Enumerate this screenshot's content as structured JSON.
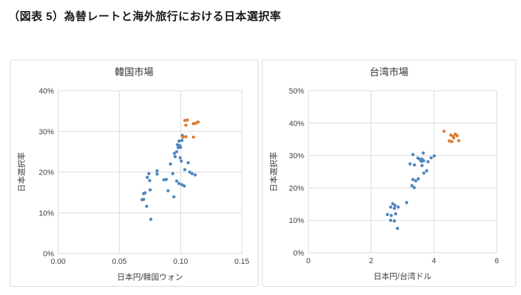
{
  "page_title": "（図表 5）為替レートと海外旅行における日本選択率",
  "colors": {
    "series_blue": "#4e86be",
    "series_orange": "#dd7a33",
    "grid": "#d9d9d9",
    "axis_text": "#404040"
  },
  "chart_data": [
    {
      "type": "scatter",
      "title": "韓国市場",
      "xlabel": "日本円/韓国ウォン",
      "ylabel": "日本選択率",
      "xlim": [
        0,
        0.15
      ],
      "ylim": [
        0,
        40
      ],
      "xticks": [
        0,
        0.05,
        0.1,
        0.15
      ],
      "xtick_labels": [
        "0.00",
        "0.05",
        "0.10",
        "0.15"
      ],
      "yticks": [
        0,
        10,
        20,
        30,
        40
      ],
      "ytick_labels": [
        "0%",
        "10%",
        "20%",
        "30%",
        "40%"
      ],
      "grid": true,
      "legend": "none",
      "series": [
        {
          "name": "series-1-blue",
          "color": "#4e86be",
          "points": [
            [
              0.1015,
              29.0
            ],
            [
              0.0987,
              27.6
            ],
            [
              0.1011,
              27.8
            ],
            [
              0.0974,
              26.7
            ],
            [
              0.0992,
              26.5
            ],
            [
              0.0981,
              26.0
            ],
            [
              0.1,
              26.1
            ],
            [
              0.0949,
              24.6
            ],
            [
              0.0968,
              25.0
            ],
            [
              0.0955,
              23.8
            ],
            [
              0.0996,
              23.5
            ],
            [
              0.0917,
              22.0
            ],
            [
              0.1006,
              22.7
            ],
            [
              0.1062,
              22.3
            ],
            [
              0.0808,
              20.3
            ],
            [
              0.0808,
              19.5
            ],
            [
              0.0741,
              19.6
            ],
            [
              0.0728,
              18.7
            ],
            [
              0.0747,
              17.9
            ],
            [
              0.0936,
              19.6
            ],
            [
              0.1034,
              20.6
            ],
            [
              0.1075,
              20.0
            ],
            [
              0.1094,
              19.6
            ],
            [
              0.1119,
              19.3
            ],
            [
              0.0864,
              18.1
            ],
            [
              0.0883,
              18.2
            ],
            [
              0.0987,
              17.2
            ],
            [
              0.0968,
              17.8
            ],
            [
              0.1011,
              16.9
            ],
            [
              0.103,
              16.6
            ],
            [
              0.0751,
              15.6
            ],
            [
              0.0898,
              15.4
            ],
            [
              0.0698,
              14.7
            ],
            [
              0.0709,
              14.9
            ],
            [
              0.0685,
              13.2
            ],
            [
              0.0698,
              13.3
            ],
            [
              0.0945,
              13.9
            ],
            [
              0.0723,
              11.6
            ],
            [
              0.0757,
              8.4
            ]
          ]
        },
        {
          "name": "series-2-orange",
          "color": "#dd7a33",
          "points": [
            [
              0.1035,
              32.7
            ],
            [
              0.1055,
              32.8
            ],
            [
              0.1043,
              31.5
            ],
            [
              0.1105,
              31.9
            ],
            [
              0.1124,
              32.0
            ],
            [
              0.1143,
              32.3
            ],
            [
              0.102,
              28.6
            ],
            [
              0.1043,
              28.7
            ],
            [
              0.1105,
              28.6
            ]
          ]
        }
      ]
    },
    {
      "type": "scatter",
      "title": "台湾市場",
      "xlabel": "日本円/台湾ドル",
      "ylabel": "日本選択率",
      "xlim": [
        0,
        6
      ],
      "ylim": [
        0,
        50
      ],
      "xticks": [
        0,
        2,
        4,
        6
      ],
      "xtick_labels": [
        "0",
        "2",
        "4",
        "6"
      ],
      "yticks": [
        0,
        10,
        20,
        30,
        40,
        50
      ],
      "ytick_labels": [
        "0%",
        "10%",
        "20%",
        "30%",
        "40%",
        "50%"
      ],
      "grid": true,
      "legend": "none",
      "series": [
        {
          "name": "series-1-blue",
          "color": "#4e86be",
          "points": [
            [
              3.33,
              30.3
            ],
            [
              3.66,
              30.8
            ],
            [
              3.49,
              29.2
            ],
            [
              3.91,
              29.3
            ],
            [
              4.01,
              29.9
            ],
            [
              3.55,
              28.8
            ],
            [
              3.62,
              28.9
            ],
            [
              3.67,
              28.4
            ],
            [
              3.6,
              28.2
            ],
            [
              3.81,
              28.1
            ],
            [
              3.24,
              27.4
            ],
            [
              3.38,
              27.1
            ],
            [
              3.62,
              26.9
            ],
            [
              3.77,
              25.3
            ],
            [
              3.68,
              24.6
            ],
            [
              3.33,
              22.6
            ],
            [
              3.42,
              22.2
            ],
            [
              3.5,
              22.8
            ],
            [
              3.3,
              20.7
            ],
            [
              3.37,
              20.1
            ],
            [
              3.13,
              15.5
            ],
            [
              2.69,
              15.1
            ],
            [
              2.76,
              14.6
            ],
            [
              2.62,
              14.1
            ],
            [
              2.74,
              13.7
            ],
            [
              2.86,
              14.1
            ],
            [
              2.52,
              11.8
            ],
            [
              2.64,
              11.5
            ],
            [
              2.78,
              12.0
            ],
            [
              2.62,
              10.0
            ],
            [
              2.74,
              9.8
            ],
            [
              2.84,
              7.5
            ]
          ]
        },
        {
          "name": "series-2-orange",
          "color": "#dd7a33",
          "points": [
            [
              4.32,
              37.5
            ],
            [
              4.54,
              36.3
            ],
            [
              4.62,
              35.9
            ],
            [
              4.68,
              36.6
            ],
            [
              4.74,
              36.1
            ],
            [
              4.49,
              34.5
            ],
            [
              4.57,
              34.3
            ],
            [
              4.79,
              34.6
            ],
            [
              4.63,
              35.4
            ]
          ]
        }
      ]
    }
  ]
}
